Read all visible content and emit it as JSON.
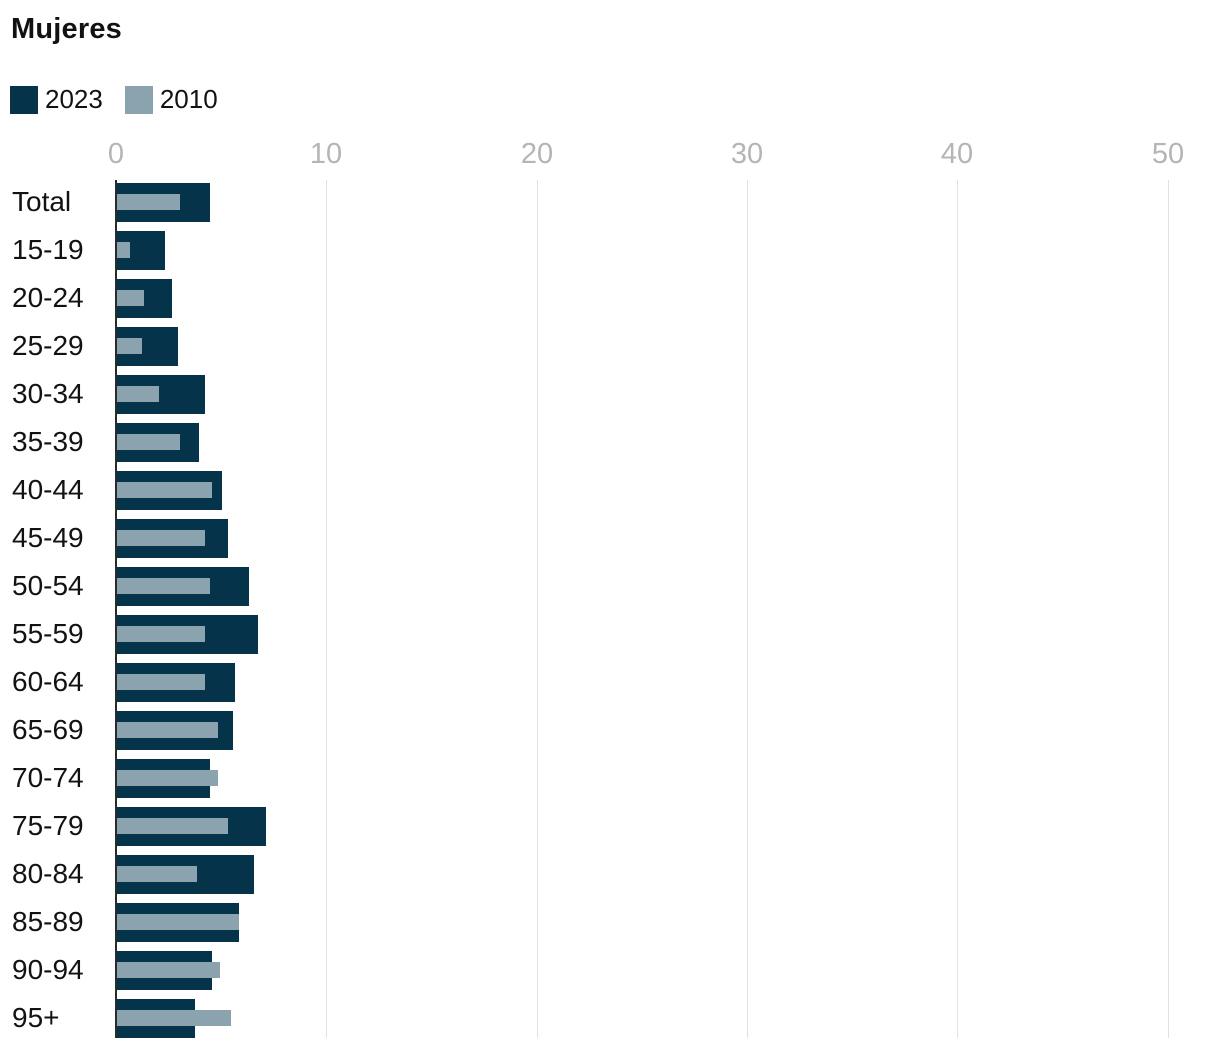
{
  "title": "Mujeres",
  "legend": {
    "items": [
      {
        "label": "2023",
        "color": "#05334a"
      },
      {
        "label": "2010",
        "color": "#8ba3ae"
      }
    ]
  },
  "chart_data": {
    "type": "bar",
    "orientation": "horizontal",
    "title": "Mujeres",
    "categories": [
      "Total",
      "15-19",
      "20-24",
      "25-29",
      "30-34",
      "35-39",
      "40-44",
      "45-49",
      "50-54",
      "55-59",
      "60-64",
      "65-69",
      "70-74",
      "75-79",
      "80-84",
      "85-89",
      "90-94",
      "95+"
    ],
    "series": [
      {
        "name": "2023",
        "color": "#05334a",
        "values": [
          4.4,
          2.3,
          2.6,
          2.9,
          4.2,
          3.9,
          5.0,
          5.3,
          6.3,
          6.7,
          5.6,
          5.5,
          4.4,
          7.1,
          6.5,
          5.8,
          4.5,
          3.7
        ]
      },
      {
        "name": "2010",
        "color": "#8ba3ae",
        "values": [
          3.0,
          0.6,
          1.3,
          1.2,
          2.0,
          3.0,
          4.5,
          4.2,
          4.4,
          4.2,
          4.2,
          4.8,
          4.8,
          5.3,
          3.8,
          5.8,
          4.9,
          5.4
        ]
      }
    ],
    "xlim": [
      0,
      50
    ],
    "x_ticks": [
      "0",
      "10",
      "20",
      "30",
      "40",
      "50"
    ],
    "grid": true,
    "legend_position": "top-left",
    "xlabel": "",
    "ylabel": "",
    "axis_color": "#2a2a2a",
    "gridline_color": "#e2e2e2",
    "tick_label_color": "#b5b5b5"
  }
}
